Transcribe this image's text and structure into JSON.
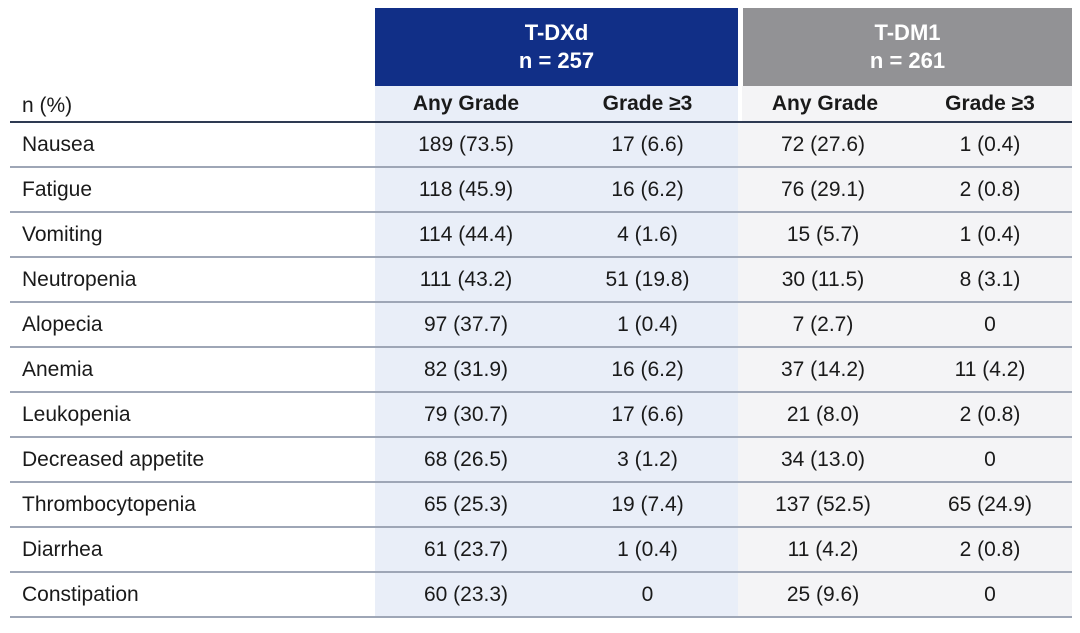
{
  "table": {
    "corner_label": "n (%)",
    "groups": [
      {
        "name": "T-DXd",
        "n": "n = 257"
      },
      {
        "name": "T-DM1",
        "n": "n = 261"
      }
    ],
    "subheaders": [
      "Any Grade",
      "Grade ≥3",
      "Any Grade",
      "Grade ≥3"
    ],
    "rows": [
      {
        "label": "Nausea",
        "values": [
          "189 (73.5)",
          "17 (6.6)",
          "72 (27.6)",
          "1 (0.4)"
        ]
      },
      {
        "label": "Fatigue",
        "values": [
          "118 (45.9)",
          "16 (6.2)",
          "76 (29.1)",
          "2 (0.8)"
        ]
      },
      {
        "label": "Vomiting",
        "values": [
          "114 (44.4)",
          "4 (1.6)",
          "15 (5.7)",
          "1 (0.4)"
        ]
      },
      {
        "label": "Neutropenia",
        "values": [
          "111 (43.2)",
          "51 (19.8)",
          "30 (11.5)",
          "8 (3.1)"
        ]
      },
      {
        "label": "Alopecia",
        "values": [
          "97 (37.7)",
          "1 (0.4)",
          "7 (2.7)",
          "0"
        ]
      },
      {
        "label": "Anemia",
        "values": [
          "82 (31.9)",
          "16 (6.2)",
          "37 (14.2)",
          "11 (4.2)"
        ]
      },
      {
        "label": "Leukopenia",
        "values": [
          "79 (30.7)",
          "17 (6.6)",
          "21 (8.0)",
          "2 (0.8)"
        ]
      },
      {
        "label": "Decreased appetite",
        "values": [
          "68 (26.5)",
          "3 (1.2)",
          "34 (13.0)",
          "0"
        ]
      },
      {
        "label": "Thrombocytopenia",
        "values": [
          "65 (25.3)",
          "19 (7.4)",
          "137 (52.5)",
          "65 (24.9)"
        ]
      },
      {
        "label": "Diarrhea",
        "values": [
          "61 (23.7)",
          "1 (0.4)",
          "11 (4.2)",
          "2 (0.8)"
        ]
      },
      {
        "label": "Constipation",
        "values": [
          "60 (23.3)",
          "0",
          "25 (9.6)",
          "0"
        ]
      }
    ]
  },
  "colors": {
    "tdxd_header_bg": "#112F87",
    "tdm1_header_bg": "#929295",
    "tdxd_body_bg": "#E9EEF8",
    "tdm1_body_bg": "#F4F4F6",
    "row_divider": "#9EA6B6",
    "header_rule": "#2E3A52",
    "header_text": "#FFFFFF",
    "body_text": "#1A1A1A"
  },
  "chart_data": {
    "type": "table",
    "columns": [
      "n (%)",
      "T-DXd n = 257 — Any Grade",
      "T-DXd n = 257 — Grade ≥3",
      "T-DM1 n = 261 — Any Grade",
      "T-DM1 n = 261 — Grade ≥3"
    ],
    "rows": [
      [
        "Nausea",
        "189 (73.5)",
        "17 (6.6)",
        "72 (27.6)",
        "1 (0.4)"
      ],
      [
        "Fatigue",
        "118 (45.9)",
        "16 (6.2)",
        "76 (29.1)",
        "2 (0.8)"
      ],
      [
        "Vomiting",
        "114 (44.4)",
        "4 (1.6)",
        "15 (5.7)",
        "1 (0.4)"
      ],
      [
        "Neutropenia",
        "111 (43.2)",
        "51 (19.8)",
        "30 (11.5)",
        "8 (3.1)"
      ],
      [
        "Alopecia",
        "97 (37.7)",
        "1 (0.4)",
        "7 (2.7)",
        "0"
      ],
      [
        "Anemia",
        "82 (31.9)",
        "16 (6.2)",
        "37 (14.2)",
        "11 (4.2)"
      ],
      [
        "Leukopenia",
        "79 (30.7)",
        "17 (6.6)",
        "21 (8.0)",
        "2 (0.8)"
      ],
      [
        "Decreased appetite",
        "68 (26.5)",
        "3 (1.2)",
        "34 (13.0)",
        "0"
      ],
      [
        "Thrombocytopenia",
        "65 (25.3)",
        "19 (7.4)",
        "137 (52.5)",
        "65 (24.9)"
      ],
      [
        "Diarrhea",
        "61 (23.7)",
        "1 (0.4)",
        "11 (4.2)",
        "2 (0.8)"
      ],
      [
        "Constipation",
        "60 (23.3)",
        "0",
        "25 (9.6)",
        "0"
      ]
    ]
  }
}
